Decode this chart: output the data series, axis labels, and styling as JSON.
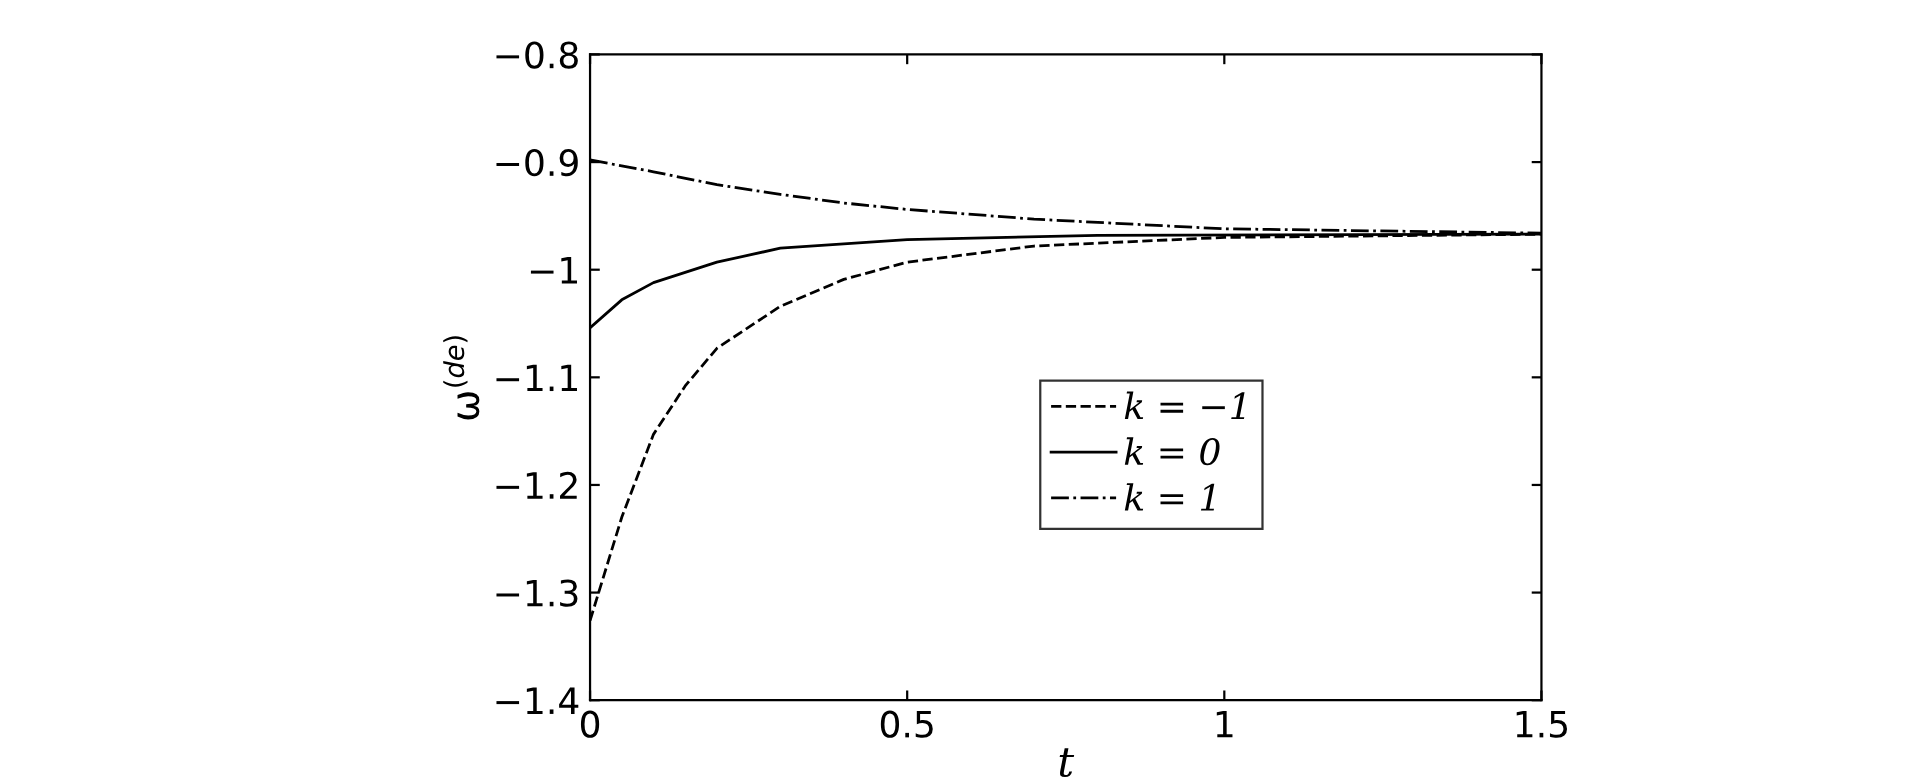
{
  "chart_data": {
    "type": "line",
    "xlabel": "t",
    "ylabel": "ω$^{(de)}$",
    "xlim": [
      0,
      1.5
    ],
    "ylim": [
      -1.4,
      -0.8
    ],
    "xticks": [
      0,
      0.5,
      1,
      1.5
    ],
    "yticks": [
      {
        "value": -1.4,
        "label": "−1.4"
      },
      {
        "value": -1.3,
        "label": "−1.3"
      },
      {
        "value": -1.2,
        "label": "−1.2"
      },
      {
        "value": -1.1,
        "label": "−1.1"
      },
      {
        "value": -1,
        "label": "−1"
      },
      {
        "value": -0.9,
        "label": "−0.9"
      },
      {
        "value": -0.8,
        "label": "−0.8"
      }
    ],
    "grid": false,
    "legend": "center",
    "marker": "none",
    "series": [
      {
        "name": "k = −1",
        "color": "#000000",
        "line_style": "dashed",
        "x": [
          0,
          0.05,
          0.1,
          0.15,
          0.2,
          0.3,
          0.4,
          0.5,
          0.7,
          1,
          1.5
        ],
        "values": [
          -1.326,
          -1.23,
          -1.153,
          -1.108,
          -1.073,
          -1.034,
          -1.009,
          -0.993,
          -0.978,
          -0.97,
          -0.967
        ]
      },
      {
        "name": "k = 0",
        "color": "#000000",
        "line_style": "solid",
        "x": [
          0,
          0.05,
          0.1,
          0.2,
          0.3,
          0.5,
          0.8,
          1.5
        ],
        "values": [
          -1.054,
          -1.028,
          -1.012,
          -0.993,
          -0.98,
          -0.972,
          -0.968,
          -0.967
        ]
      },
      {
        "name": "k = 1",
        "color": "#000000",
        "line_style": "dashdot",
        "x": [
          0,
          0.1,
          0.2,
          0.3,
          0.4,
          0.5,
          0.7,
          1,
          1.5
        ],
        "values": [
          -0.898,
          -0.909,
          -0.921,
          -0.93,
          -0.938,
          -0.944,
          -0.953,
          -0.962,
          -0.966
        ]
      }
    ]
  }
}
